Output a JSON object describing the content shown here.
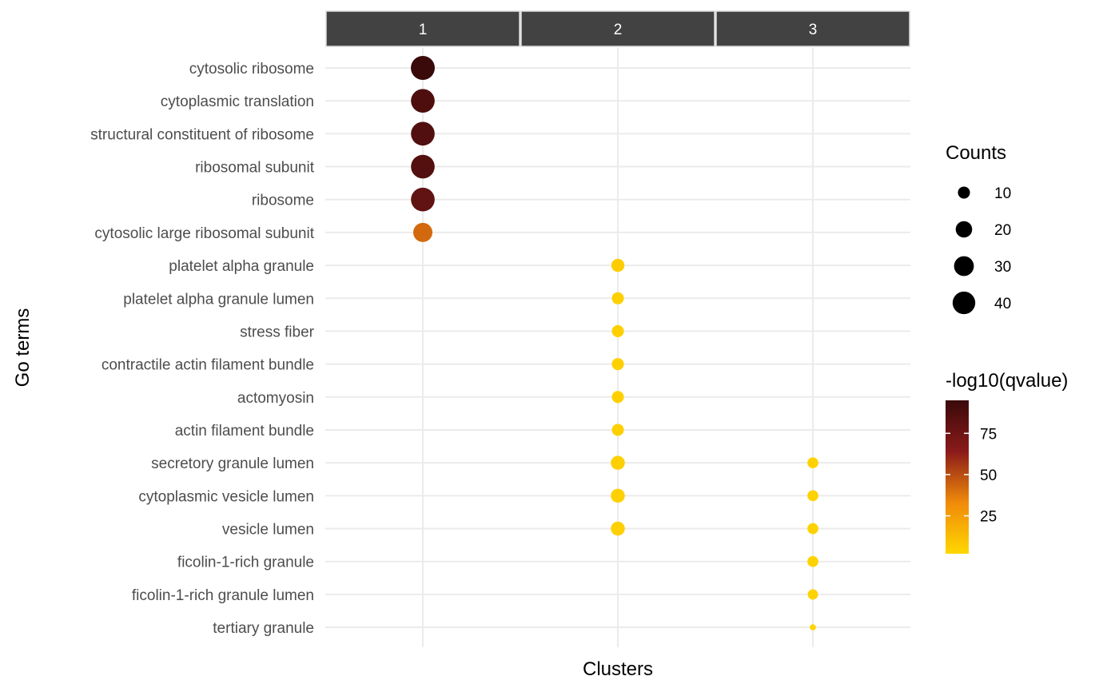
{
  "chart_data": {
    "type": "scatter",
    "xlabel": "Clusters",
    "ylabel": "Go terms",
    "facets": [
      "1",
      "2",
      "3"
    ],
    "terms": [
      "cytosolic ribosome",
      "cytoplasmic translation",
      "structural constituent of ribosome",
      "ribosomal subunit",
      "ribosome",
      "cytosolic large ribosomal subunit",
      "platelet alpha granule",
      "platelet alpha granule lumen",
      "stress fiber",
      "contractile actin filament bundle",
      "actomyosin",
      "actin filament bundle",
      "secretory granule lumen",
      "cytoplasmic vesicle lumen",
      "vesicle lumen",
      "ficolin-1-rich granule",
      "ficolin-1-rich granule lumen",
      "tertiary granule"
    ],
    "points": [
      {
        "cluster": "1",
        "term": "cytosolic ribosome",
        "count": 45,
        "neglog10q": 95
      },
      {
        "cluster": "1",
        "term": "cytoplasmic translation",
        "count": 44,
        "neglog10q": 87
      },
      {
        "cluster": "1",
        "term": "structural constituent of ribosome",
        "count": 44,
        "neglog10q": 86
      },
      {
        "cluster": "1",
        "term": "ribosomal subunit",
        "count": 44,
        "neglog10q": 85
      },
      {
        "cluster": "1",
        "term": "ribosome",
        "count": 44,
        "neglog10q": 80
      },
      {
        "cluster": "1",
        "term": "cytosolic large ribosomal subunit",
        "count": 28,
        "neglog10q": 42
      },
      {
        "cluster": "2",
        "term": "platelet alpha granule",
        "count": 12,
        "neglog10q": 6
      },
      {
        "cluster": "2",
        "term": "platelet alpha granule lumen",
        "count": 10,
        "neglog10q": 5
      },
      {
        "cluster": "2",
        "term": "stress fiber",
        "count": 10,
        "neglog10q": 5
      },
      {
        "cluster": "2",
        "term": "contractile actin filament bundle",
        "count": 10,
        "neglog10q": 5
      },
      {
        "cluster": "2",
        "term": "actomyosin",
        "count": 10,
        "neglog10q": 5
      },
      {
        "cluster": "2",
        "term": "actin filament bundle",
        "count": 10,
        "neglog10q": 5
      },
      {
        "cluster": "2",
        "term": "secretory granule lumen",
        "count": 14,
        "neglog10q": 5
      },
      {
        "cluster": "2",
        "term": "cytoplasmic vesicle lumen",
        "count": 14,
        "neglog10q": 5
      },
      {
        "cluster": "2",
        "term": "vesicle lumen",
        "count": 14,
        "neglog10q": 5
      },
      {
        "cluster": "3",
        "term": "secretory granule lumen",
        "count": 8,
        "neglog10q": 4
      },
      {
        "cluster": "3",
        "term": "cytoplasmic vesicle lumen",
        "count": 8,
        "neglog10q": 4
      },
      {
        "cluster": "3",
        "term": "vesicle lumen",
        "count": 8,
        "neglog10q": 4
      },
      {
        "cluster": "3",
        "term": "ficolin-1-rich granule",
        "count": 8,
        "neglog10q": 4
      },
      {
        "cluster": "3",
        "term": "ficolin-1-rich granule lumen",
        "count": 7,
        "neglog10q": 4
      },
      {
        "cluster": "3",
        "term": "tertiary granule",
        "count": 2,
        "neglog10q": 3
      }
    ],
    "size_legend": {
      "title": "Counts",
      "breaks": [
        10,
        20,
        30,
        40
      ]
    },
    "color_legend": {
      "title": "-log10(qvalue)",
      "breaks": [
        25,
        50,
        75
      ],
      "range": [
        2,
        95
      ],
      "colors": [
        "#ffd700",
        "#f08a0a",
        "#8b1a1a",
        "#3a0a0a"
      ]
    },
    "grid": true,
    "legend_position": "right"
  }
}
